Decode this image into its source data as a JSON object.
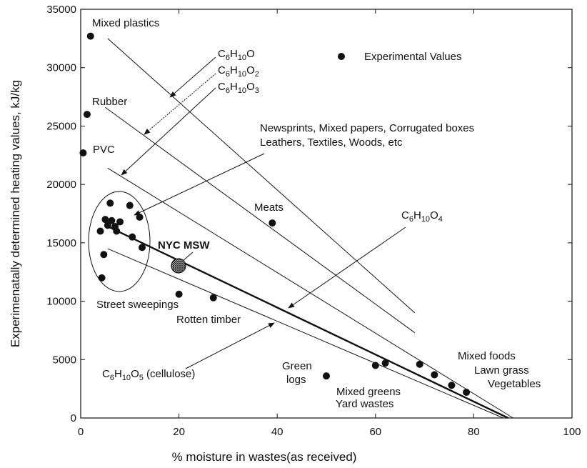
{
  "chart_data": {
    "type": "scatter",
    "xlabel": "% moisture in wastes(as received)",
    "ylabel": "Experimenatally determined heating values, kJ/kg",
    "xlim": [
      0,
      100
    ],
    "ylim": [
      0,
      35000
    ],
    "x_ticks": [
      0,
      20,
      40,
      60,
      80,
      100
    ],
    "y_ticks": [
      0,
      5000,
      10000,
      15000,
      20000,
      25000,
      30000,
      35000
    ],
    "legend": {
      "label": "Experimental Values",
      "placement": "top-right"
    },
    "points": [
      {
        "x": 2,
        "y": 32700
      },
      {
        "x": 1.3,
        "y": 26000
      },
      {
        "x": 0.5,
        "y": 22700
      },
      {
        "x": 6,
        "y": 18400
      },
      {
        "x": 10,
        "y": 18200
      },
      {
        "x": 12,
        "y": 17200
      },
      {
        "x": 5,
        "y": 17000
      },
      {
        "x": 6.3,
        "y": 16900
      },
      {
        "x": 8,
        "y": 16800
      },
      {
        "x": 5.5,
        "y": 16500
      },
      {
        "x": 7,
        "y": 16400
      },
      {
        "x": 4,
        "y": 16000
      },
      {
        "x": 7.3,
        "y": 16000
      },
      {
        "x": 10.5,
        "y": 15500
      },
      {
        "x": 12.5,
        "y": 14600
      },
      {
        "x": 4.7,
        "y": 14000
      },
      {
        "x": 4.3,
        "y": 12000
      },
      {
        "x": 20,
        "y": 10600
      },
      {
        "x": 27,
        "y": 10300
      },
      {
        "x": 39,
        "y": 16700
      },
      {
        "x": 50,
        "y": 3600
      },
      {
        "x": 60,
        "y": 4500
      },
      {
        "x": 62,
        "y": 4700
      },
      {
        "x": 69,
        "y": 4600
      },
      {
        "x": 72,
        "y": 3700
      },
      {
        "x": 75.5,
        "y": 2800
      },
      {
        "x": 78.5,
        "y": 2200
      }
    ],
    "special_point": {
      "label": "NYC MSW",
      "x": 20,
      "y": 13000
    },
    "lines": [
      {
        "name": "C6H10O",
        "x": [
          5.5,
          68
        ],
        "y": [
          32500,
          9000
        ],
        "weight": "thin"
      },
      {
        "name": "C6H10O2",
        "x": [
          5,
          68
        ],
        "y": [
          26600,
          7300
        ],
        "weight": "thin"
      },
      {
        "name": "C6H10O3",
        "x": [
          5.5,
          88
        ],
        "y": [
          21400,
          0
        ],
        "weight": "thin"
      },
      {
        "name": "C6H10O4",
        "x": [
          5,
          87
        ],
        "y": [
          16500,
          0
        ],
        "weight": "bold"
      },
      {
        "name": "C6H10O5 (cellulose)",
        "x": [
          5.5,
          86
        ],
        "y": [
          14500,
          0
        ],
        "weight": "thin"
      }
    ],
    "annotations": {
      "mixed_plastics": "Mixed plastics",
      "rubber": "Rubber",
      "pvc": "PVC",
      "meats": "Meats",
      "nyc_msw": "NYC MSW",
      "street_sweepings": "Street sweepings",
      "rotten_timber": "Rotten timber",
      "green_logs_1": "Green",
      "green_logs_2": "logs",
      "mixed_greens": "Mixed greens",
      "yard_wastes": "Yard wastes",
      "mixed_foods": "Mixed foods",
      "lawn_grass": "Lawn grass",
      "vegetables": "Vegetables",
      "newsprints_1": "Newsprints, Mixed papers, Corrugated boxes",
      "newsprints_2": "Leathers, Textiles, Woods, etc",
      "cellulose_prefix": "C",
      "cellulose_suffix": " (cellulose)",
      "formula_base": "C",
      "formula_mid": "H",
      "formula_end": "O",
      "sub_6": "6",
      "sub_10": "10",
      "sub_2": "2",
      "sub_3": "3",
      "sub_4": "4",
      "sub_5": "5"
    },
    "grid": false
  }
}
